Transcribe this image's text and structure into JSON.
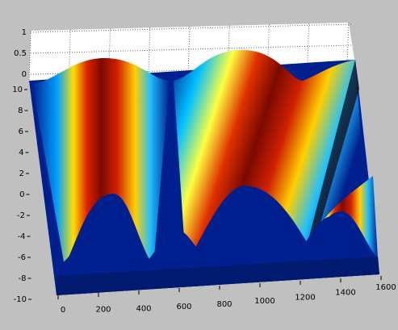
{
  "chart_data": {
    "type": "surface",
    "xlim": [
      0,
      1600
    ],
    "xticks": [
      0,
      200,
      400,
      600,
      800,
      1000,
      1200,
      1400,
      1600
    ],
    "ylim": [
      -10,
      10
    ],
    "yticks": [
      10,
      8,
      6,
      4,
      2,
      0,
      -2,
      -4,
      -6,
      -8,
      -10
    ],
    "zlim": [
      0,
      1
    ],
    "zticks": [
      1,
      0.5,
      0
    ],
    "grid": true
  }
}
